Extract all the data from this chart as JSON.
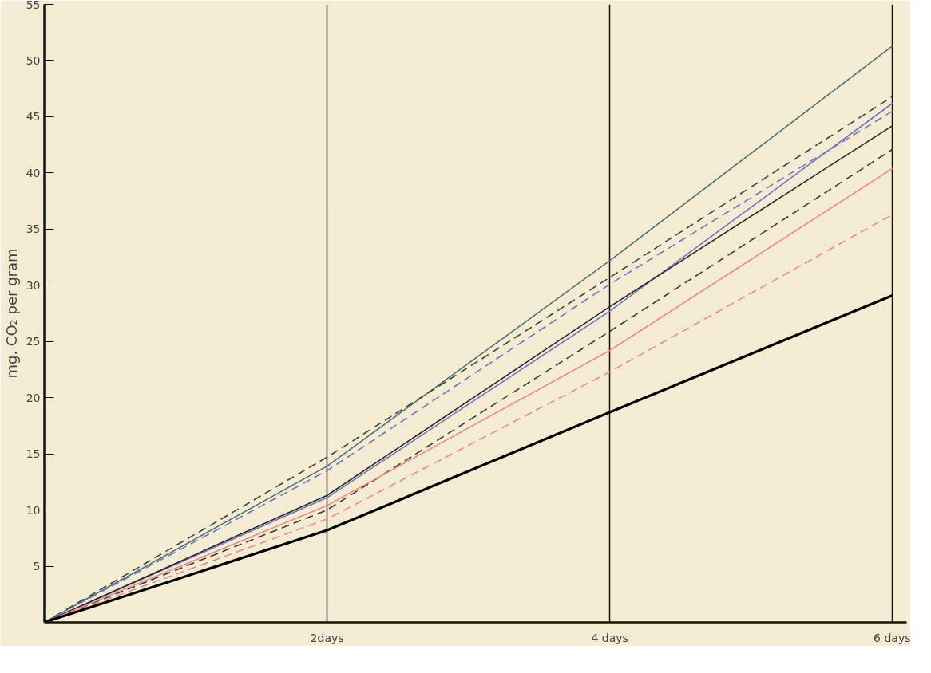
{
  "chart_data": {
    "type": "line",
    "ylabel": "mg. CO₂ per gram",
    "x": [
      0,
      2,
      4,
      6
    ],
    "xlim": [
      0,
      6.1
    ],
    "ylim": [
      0,
      55
    ],
    "xticks": [
      {
        "value": 2,
        "label": "2days"
      },
      {
        "value": 4,
        "label": "4 days"
      },
      {
        "value": 6,
        "label": "6 days"
      }
    ],
    "yticks": [
      5,
      10,
      15,
      20,
      25,
      30,
      35,
      40,
      45,
      50,
      55
    ],
    "grid": "x",
    "marker": "none",
    "series": [
      {
        "color": "#4a7272",
        "line_style": "solid",
        "values": [
          0,
          13.9,
          32.2,
          51.3
        ]
      },
      {
        "color": "#3a4646",
        "line_style": "dashed",
        "values": [
          0,
          14.7,
          30.7,
          46.8
        ]
      },
      {
        "color": "#7074c4",
        "line_style": "solid",
        "values": [
          0,
          11.1,
          27.7,
          46.2
        ]
      },
      {
        "color": "#7074c4",
        "line_style": "dashed",
        "values": [
          0,
          13.5,
          30.1,
          45.5
        ]
      },
      {
        "color": "#262626",
        "line_style": "solid",
        "values": [
          0,
          11.3,
          28.1,
          44.2
        ]
      },
      {
        "color": "#3a3a3a",
        "line_style": "dashed",
        "values": [
          0,
          10.0,
          25.9,
          42.1
        ]
      },
      {
        "color": "#e88a8a",
        "line_style": "solid",
        "values": [
          0,
          10.4,
          24.2,
          40.4
        ]
      },
      {
        "color": "#e88a8a",
        "line_style": "dashed",
        "values": [
          0,
          9.2,
          22.3,
          36.3
        ]
      },
      {
        "color": "#000000",
        "line_style": "solid",
        "values": [
          0,
          8.2,
          18.7,
          29.1
        ]
      }
    ]
  }
}
